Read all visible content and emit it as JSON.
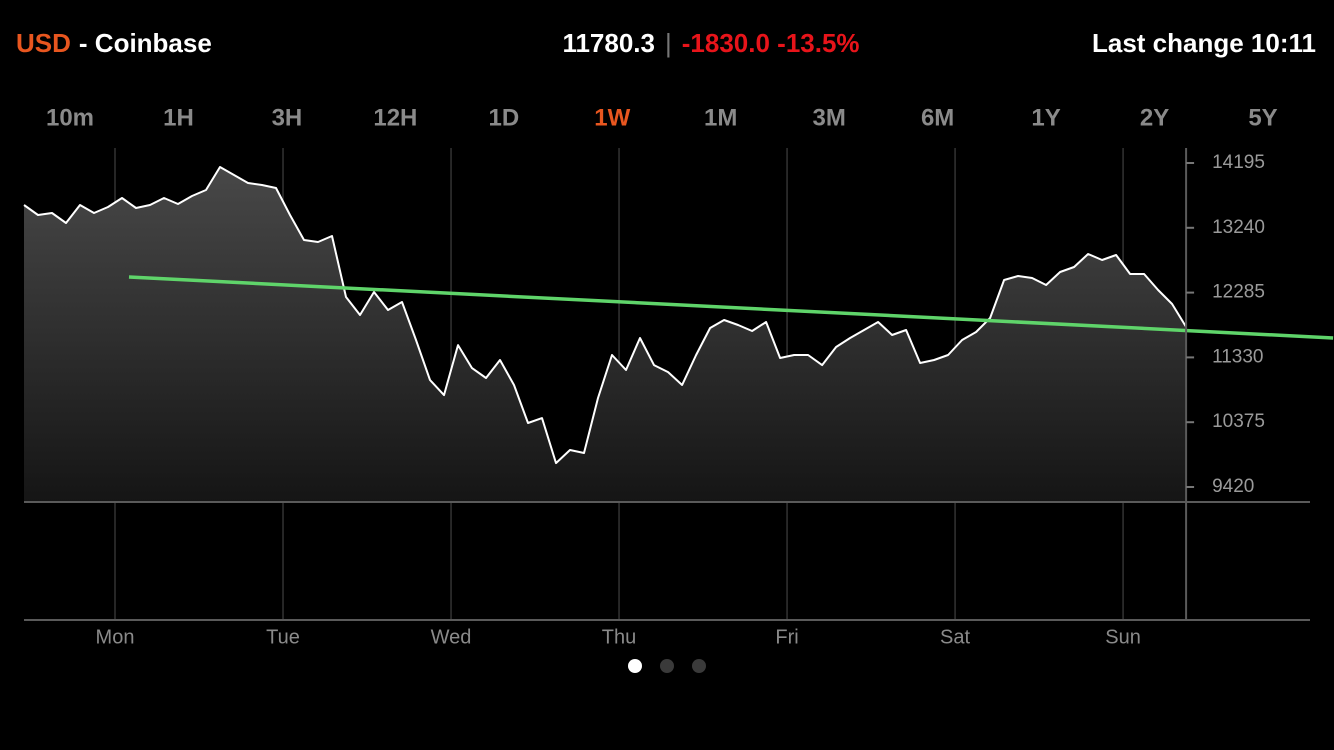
{
  "header": {
    "currency": "USD",
    "exchange": "- Coinbase",
    "price": "11780.3",
    "separator": "|",
    "change": "-1830.0 -13.5%",
    "last_change": "Last change 10:11"
  },
  "tabs": {
    "labels": [
      "10m",
      "1H",
      "3H",
      "12H",
      "1D",
      "1W",
      "1M",
      "3M",
      "6M",
      "1Y",
      "2Y",
      "5Y"
    ],
    "active": 5
  },
  "chart_data": {
    "type": "area",
    "series": [
      {
        "color": "#ffffff",
        "x": [
          -13,
          -11,
          -9,
          -7,
          -5,
          -3,
          -1,
          1,
          3,
          5,
          7,
          9,
          11,
          13,
          15,
          17,
          19,
          21,
          23,
          25,
          27,
          29,
          31,
          33,
          35,
          37,
          39,
          41,
          43,
          45,
          47,
          49,
          51,
          53,
          55,
          57,
          59,
          61,
          63,
          65,
          67,
          69,
          71,
          73,
          75,
          77,
          79,
          81,
          83,
          85,
          87,
          89,
          91,
          93,
          95,
          97,
          99,
          101,
          103,
          105,
          107,
          109,
          111,
          113,
          115,
          117,
          119,
          121,
          123,
          125,
          127,
          129,
          131,
          133,
          135,
          137,
          139,
          141,
          143,
          145,
          147,
          149,
          151,
          153
        ],
        "values": [
          13576,
          13429,
          13458,
          13311,
          13576,
          13458,
          13546,
          13679,
          13532,
          13576,
          13679,
          13591,
          13709,
          13797,
          14136,
          14018,
          13900,
          13871,
          13827,
          13429,
          13060,
          13031,
          13119,
          12220,
          11955,
          12294,
          12028,
          12146,
          11586,
          10997,
          10775,
          11512,
          11173,
          11026,
          11291,
          10923,
          10363,
          10436,
          9773,
          9965,
          9921,
          10731,
          11365,
          11144,
          11616,
          11217,
          11114,
          10923,
          11365,
          11763,
          11881,
          11807,
          11719,
          11851,
          11321,
          11365,
          11365,
          11217,
          11483,
          11616,
          11734,
          11851,
          11660,
          11734,
          11247,
          11291,
          11365,
          11586,
          11704,
          11910,
          12470,
          12529,
          12500,
          12397,
          12588,
          12662,
          12854,
          12765,
          12839,
          12559,
          12559,
          12323,
          12117,
          11780
        ]
      },
      {
        "color": "#5fd46a",
        "x": [
          2,
          174
        ],
        "values": [
          12515,
          11616
        ]
      }
    ],
    "xlim": [
      -13,
      170.7
    ],
    "xticks": [
      {
        "value": 0,
        "label": "Mon"
      },
      {
        "value": 24,
        "label": "Tue"
      },
      {
        "value": 48,
        "label": "Wed"
      },
      {
        "value": 72,
        "label": "Thu"
      },
      {
        "value": 96,
        "label": "Fri"
      },
      {
        "value": 120,
        "label": "Sat"
      },
      {
        "value": 144,
        "label": "Sun"
      }
    ],
    "ylim": [
      9199,
      14416
    ],
    "yticks": [
      9420,
      10375,
      11330,
      12285,
      13240,
      14195
    ],
    "grid": true
  }
}
